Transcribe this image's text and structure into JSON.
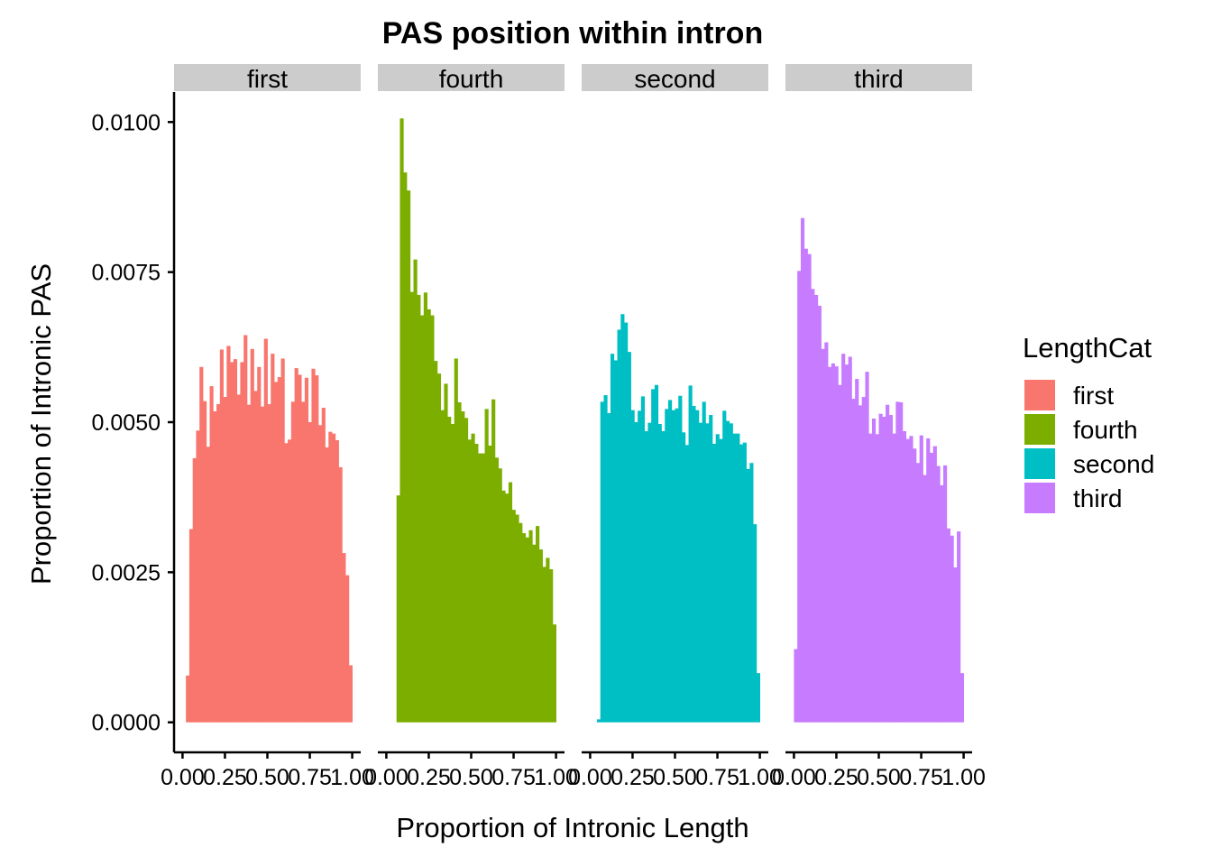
{
  "chart_data": {
    "type": "bar",
    "title": "PAS position within intron",
    "xlabel": "Proportion of Intronic Length",
    "ylabel": "Proportion of Intronic PAS",
    "xlim": [
      -0.05,
      1.05
    ],
    "ylim": [
      -0.0005,
      0.0105
    ],
    "x_ticks": [
      0,
      0.25,
      0.5,
      0.75,
      1
    ],
    "x_tick_labels": [
      "0.00",
      "0.25",
      "0.50",
      "0.75",
      "1.00"
    ],
    "y_ticks": [
      0,
      0.0025,
      0.005,
      0.0075,
      0.01
    ],
    "y_tick_labels": [
      "0.0000",
      "0.0025",
      "0.0050",
      "0.0075",
      "0.0100"
    ],
    "bin_width": 0.02,
    "grid": false,
    "legend": {
      "title": "LengthCat",
      "placement": "right",
      "entries": [
        {
          "name": "first",
          "color": "#F8766D"
        },
        {
          "name": "fourth",
          "color": "#7CAE00"
        },
        {
          "name": "second",
          "color": "#00BFC4"
        },
        {
          "name": "third",
          "color": "#C77CFF"
        }
      ]
    },
    "panels": [
      {
        "strip": "first",
        "color": "#F8766D",
        "values": [
          0.00078,
          0.00322,
          0.0044,
          0.00486,
          0.00592,
          0.00535,
          0.00459,
          0.0056,
          0.00518,
          0.0053,
          0.00621,
          0.00542,
          0.00627,
          0.006,
          0.00605,
          0.00546,
          0.006,
          0.00645,
          0.00529,
          0.00622,
          0.00552,
          0.00592,
          0.00526,
          0.00639,
          0.0053,
          0.00614,
          0.00567,
          0.00575,
          0.00606,
          0.00465,
          0.00471,
          0.00534,
          0.0059,
          0.00579,
          0.00534,
          0.00574,
          0.005,
          0.00589,
          0.00578,
          0.00495,
          0.00524,
          0.00458,
          0.00484,
          0.00481,
          0.0047,
          0.00425,
          0.00282,
          0.00245,
          0.00095
        ]
      },
      {
        "strip": "fourth",
        "color": "#7CAE00",
        "values": [
          0.00378,
          0.01006,
          0.00916,
          0.00886,
          0.00717,
          0.00771,
          0.00712,
          0.00678,
          0.00716,
          0.00688,
          0.00678,
          0.00602,
          0.00581,
          0.0052,
          0.00564,
          0.00509,
          0.00497,
          0.00606,
          0.00533,
          0.00518,
          0.00507,
          0.00471,
          0.00481,
          0.00464,
          0.00448,
          0.00448,
          0.00522,
          0.00461,
          0.00538,
          0.00441,
          0.00423,
          0.00386,
          0.00381,
          0.004,
          0.00354,
          0.00346,
          0.00332,
          0.00315,
          0.00308,
          0.0032,
          0.00296,
          0.00327,
          0.00288,
          0.00259,
          0.00274,
          0.00255,
          0.00163
        ]
      },
      {
        "strip": "second",
        "color": "#00BFC4",
        "values": [
          5e-05,
          0.00534,
          0.00545,
          0.00515,
          0.00614,
          0.00603,
          0.00654,
          0.0068,
          0.00666,
          0.00617,
          0.0052,
          0.005,
          0.00519,
          0.00543,
          0.00485,
          0.00499,
          0.00555,
          0.00562,
          0.00497,
          0.00485,
          0.00522,
          0.00537,
          0.0052,
          0.00523,
          0.00544,
          0.00483,
          0.00462,
          0.00561,
          0.00527,
          0.0052,
          0.00499,
          0.00534,
          0.00498,
          0.00512,
          0.00464,
          0.0048,
          0.00472,
          0.00519,
          0.00502,
          0.00498,
          0.00481,
          0.00481,
          0.00463,
          0.00466,
          0.00422,
          0.00432,
          0.0033,
          0.00082
        ]
      },
      {
        "strip": "third",
        "color": "#C77CFF",
        "values": [
          0.00122,
          0.00752,
          0.0084,
          0.00789,
          0.0078,
          0.00722,
          0.00712,
          0.00694,
          0.00622,
          0.00633,
          0.00592,
          0.00598,
          0.00593,
          0.00562,
          0.00614,
          0.00596,
          0.00609,
          0.00539,
          0.00572,
          0.00528,
          0.00542,
          0.00584,
          0.00481,
          0.00506,
          0.0048,
          0.00514,
          0.00509,
          0.00529,
          0.00512,
          0.00481,
          0.00534,
          0.00533,
          0.00485,
          0.00472,
          0.00477,
          0.00456,
          0.00432,
          0.00478,
          0.00412,
          0.00473,
          0.00449,
          0.0046,
          0.00427,
          0.00395,
          0.00428,
          0.00323,
          0.00311,
          0.00258,
          0.00318,
          0.00082
        ]
      }
    ]
  }
}
